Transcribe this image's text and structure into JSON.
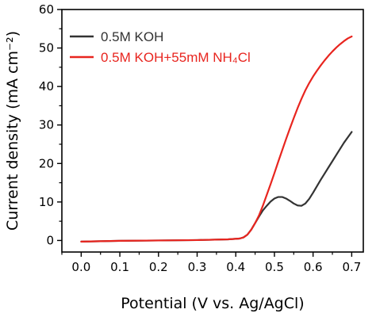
{
  "chart_data": {
    "type": "line",
    "xlabel": "Potential (V vs. Ag/AgCl)",
    "ylabel": "Current density (mA cm⁻²)",
    "xlim": [
      -0.05,
      0.73
    ],
    "ylim": [
      -3,
      60
    ],
    "x_ticks": [
      0.0,
      0.1,
      0.2,
      0.3,
      0.4,
      0.5,
      0.6,
      0.7
    ],
    "x_tick_labels": [
      "0.0",
      "0.1",
      "0.2",
      "0.3",
      "0.4",
      "0.5",
      "0.6",
      "0.7"
    ],
    "y_ticks": [
      0,
      10,
      20,
      30,
      40,
      50,
      60
    ],
    "y_tick_labels": [
      "0",
      "10",
      "20",
      "30",
      "40",
      "50",
      "60"
    ],
    "grid": false,
    "legend_position": "top-left",
    "series": [
      {
        "name": "0.5M KOH",
        "color": "#333333",
        "x": [
          0.0,
          0.05,
          0.1,
          0.2,
          0.3,
          0.38,
          0.41,
          0.42,
          0.43,
          0.44,
          0.45,
          0.46,
          0.47,
          0.48,
          0.49,
          0.5,
          0.51,
          0.52,
          0.53,
          0.54,
          0.55,
          0.56,
          0.57,
          0.58,
          0.59,
          0.6,
          0.61,
          0.62,
          0.63,
          0.64,
          0.65,
          0.66,
          0.67,
          0.68,
          0.69,
          0.7
        ],
        "y": [
          -0.3,
          -0.2,
          -0.1,
          0.0,
          0.1,
          0.3,
          0.5,
          0.8,
          1.5,
          2.8,
          4.5,
          6.2,
          7.8,
          9.0,
          10.1,
          10.9,
          11.3,
          11.3,
          10.9,
          10.3,
          9.6,
          9.1,
          9.0,
          9.6,
          10.8,
          12.4,
          14.1,
          15.8,
          17.4,
          19.0,
          20.6,
          22.2,
          23.8,
          25.4,
          26.8,
          28.2
        ]
      },
      {
        "name": "0.5M KOH+55mM NH₄Cl",
        "color": "#e8251f",
        "x": [
          0.0,
          0.05,
          0.1,
          0.2,
          0.3,
          0.38,
          0.41,
          0.42,
          0.43,
          0.44,
          0.45,
          0.46,
          0.47,
          0.48,
          0.49,
          0.5,
          0.51,
          0.52,
          0.53,
          0.54,
          0.55,
          0.56,
          0.57,
          0.58,
          0.59,
          0.6,
          0.61,
          0.62,
          0.63,
          0.64,
          0.65,
          0.66,
          0.67,
          0.68,
          0.69,
          0.7
        ],
        "y": [
          -0.3,
          -0.2,
          -0.1,
          0.0,
          0.1,
          0.3,
          0.5,
          0.8,
          1.5,
          2.8,
          4.5,
          6.5,
          9.0,
          11.8,
          14.6,
          17.5,
          20.5,
          23.4,
          26.3,
          29.1,
          31.8,
          34.4,
          36.8,
          39.0,
          40.9,
          42.6,
          44.1,
          45.5,
          46.8,
          48.0,
          49.1,
          50.1,
          51.0,
          51.8,
          52.5,
          53.0
        ]
      }
    ]
  }
}
